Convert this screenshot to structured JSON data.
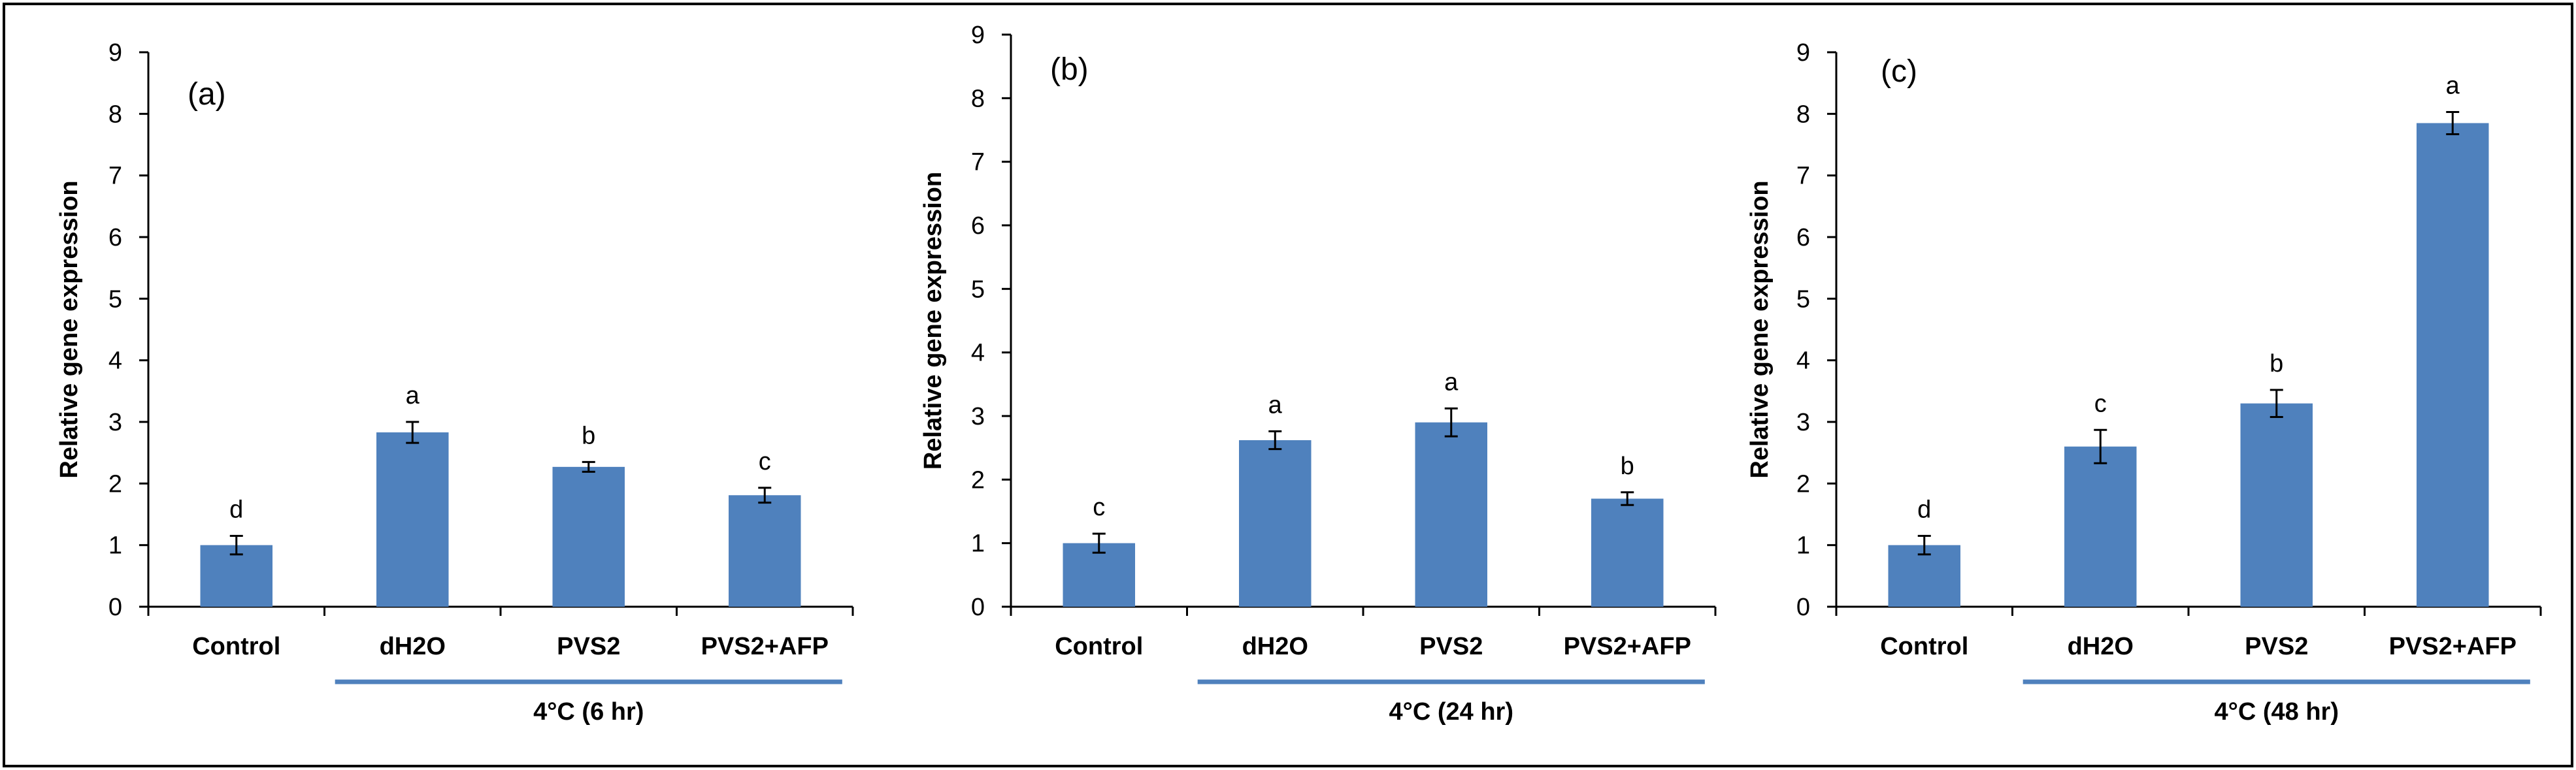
{
  "chart_data": [
    {
      "type": "bar",
      "panel_label": "(a)",
      "ylabel": "Relative gene expression",
      "ylim": [
        0,
        9
      ],
      "yticks": [
        "0",
        "1",
        "2",
        "3",
        "4",
        "5",
        "6",
        "7",
        "8",
        "9"
      ],
      "categories": [
        "Control",
        "dH2O",
        "PVS2",
        "PVS2+AFP"
      ],
      "values": [
        1.0,
        2.83,
        2.27,
        1.81
      ],
      "errors": [
        0.15,
        0.17,
        0.08,
        0.12
      ],
      "significance_letters": [
        "d",
        "a",
        "b",
        "c"
      ],
      "group_label": "4°C (6 hr)",
      "bar_color": "#4f81bd"
    },
    {
      "type": "bar",
      "panel_label": "(b)",
      "ylabel": "Relative gene expression",
      "ylim": [
        0,
        9
      ],
      "yticks": [
        "0",
        "1",
        "2",
        "3",
        "4",
        "5",
        "6",
        "7",
        "8",
        "9"
      ],
      "categories": [
        "Control",
        "dH2O",
        "PVS2",
        "PVS2+AFP"
      ],
      "values": [
        1.0,
        2.62,
        2.9,
        1.7
      ],
      "errors": [
        0.15,
        0.14,
        0.22,
        0.1
      ],
      "significance_letters": [
        "c",
        "a",
        "a",
        "b"
      ],
      "group_label": "4°C (24 hr)",
      "bar_color": "#4f81bd"
    },
    {
      "type": "bar",
      "panel_label": "(c)",
      "ylabel": "Relative gene expression",
      "ylim": [
        0,
        9
      ],
      "yticks": [
        "0",
        "1",
        "2",
        "3",
        "4",
        "5",
        "6",
        "7",
        "8",
        "9"
      ],
      "categories": [
        "Control",
        "dH2O",
        "PVS2",
        "PVS2+AFP"
      ],
      "values": [
        1.0,
        2.6,
        3.3,
        7.85
      ],
      "errors": [
        0.15,
        0.27,
        0.22,
        0.18
      ],
      "significance_letters": [
        "d",
        "c",
        "b",
        "a"
      ],
      "group_label": "4°C (48 hr)",
      "bar_color": "#4f81bd"
    }
  ]
}
